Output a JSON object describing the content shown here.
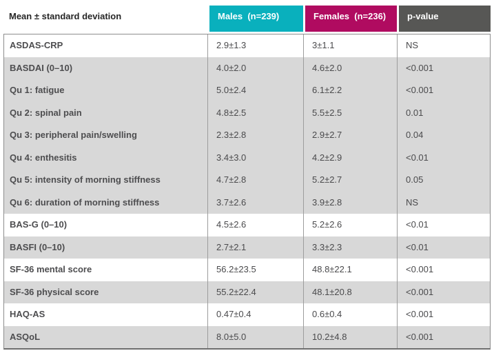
{
  "table": {
    "corner_header": "Mean ± standard deviation",
    "columns": [
      {
        "id": "males",
        "label": "Males  (n=239)",
        "bg": "#09B0BD"
      },
      {
        "id": "females",
        "label": "Females  (n=236)",
        "bg": "#B00B60"
      },
      {
        "id": "pvalue",
        "label": "p-value",
        "bg": "#575755"
      }
    ],
    "rows": [
      {
        "label": "ASDAS-CRP",
        "males": "2.9±1.3",
        "females": "3±1.1",
        "p": "NS",
        "shaded": false
      },
      {
        "label": "BASDAI (0–10)",
        "males": "4.0±2.0",
        "females": "4.6±2.0",
        "p": "<0.001",
        "shaded": true
      },
      {
        "label": "Qu 1: fatigue",
        "males": "5.0±2.4",
        "females": "6.1±2.2",
        "p": "<0.001",
        "shaded": true
      },
      {
        "label": "Qu 2: spinal pain",
        "males": "4.8±2.5",
        "females": "5.5±2.5",
        "p": "0.01",
        "shaded": true
      },
      {
        "label": "Qu 3: peripheral pain/swelling",
        "males": "2.3±2.8",
        "females": "2.9±2.7",
        "p": "0.04",
        "shaded": true
      },
      {
        "label": "Qu 4: enthesitis",
        "males": "3.4±3.0",
        "females": "4.2±2.9",
        "p": "<0.01",
        "shaded": true
      },
      {
        "label": "Qu 5: intensity of morning stiffness",
        "males": "4.7±2.8",
        "females": "5.2±2.7",
        "p": "0.05",
        "shaded": true
      },
      {
        "label": "Qu 6: duration of morning stiffness",
        "males": "3.7±2.6",
        "females": "3.9±2.8",
        "p": "NS",
        "shaded": true
      },
      {
        "label": "BAS-G (0–10)",
        "males": "4.5±2.6",
        "females": "5.2±2.6",
        "p": "<0.01",
        "shaded": false
      },
      {
        "label": "BASFI (0–10)",
        "males": "2.7±2.1",
        "females": "3.3±2.3",
        "p": "<0.01",
        "shaded": true
      },
      {
        "label": "SF-36 mental score",
        "males": "56.2±23.5",
        "females": "48.8±22.1",
        "p": "<0.001",
        "shaded": false
      },
      {
        "label": "SF-36 physical score",
        "males": "55.2±22.4",
        "females": "48.1±20.8",
        "p": "<0.001",
        "shaded": true
      },
      {
        "label": "HAQ-AS",
        "males": "0.47±0.4",
        "females": "0.6±0.4",
        "p": "<0.001",
        "shaded": false
      },
      {
        "label": "ASQoL",
        "males": "8.0±5.0",
        "females": "10.2±4.8",
        "p": "<0.001",
        "shaded": true
      }
    ]
  },
  "colors": {
    "males_header_bg": "#09B0BD",
    "females_header_bg": "#B00B60",
    "pvalue_header_bg": "#575755",
    "shaded_row_bg": "#D8D8D8",
    "border": "#8C8C8C"
  }
}
